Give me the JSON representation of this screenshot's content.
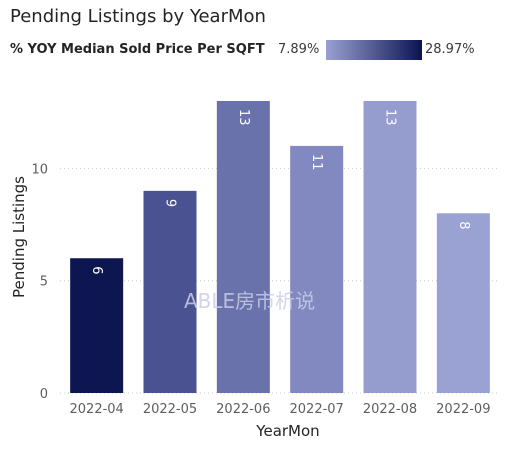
{
  "title": "Pending Listings by YearMon",
  "legend": {
    "label": "% YOY Median Sold Price Per SQFT",
    "min_label": "7.89%",
    "max_label": "28.97%",
    "color_low": "#9aa0d2",
    "color_high": "#0b1452"
  },
  "watermark": "ABLE房市析说",
  "chart_data": {
    "type": "bar",
    "title": "Pending Listings by YearMon",
    "xlabel": "YearMon",
    "ylabel": "Pending Listings",
    "categories": [
      "2022-04",
      "2022-05",
      "2022-06",
      "2022-07",
      "2022-08",
      "2022-09"
    ],
    "values": [
      6,
      9,
      13,
      11,
      13,
      8
    ],
    "bar_colors": [
      "#0d1650",
      "#4a5292",
      "#6a72ab",
      "#8189c0",
      "#959dce",
      "#9aa2d3"
    ],
    "yticks": [
      0,
      5,
      10
    ],
    "ylim": [
      0,
      13
    ],
    "grid": "horizontal dotted",
    "data_labels": true
  }
}
